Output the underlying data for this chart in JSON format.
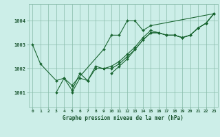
{
  "background_color": "#cceee8",
  "grid_color": "#88bbaa",
  "line_color": "#1a6632",
  "marker_color": "#1a6632",
  "xlabel": "Graphe pression niveau de la mer (hPa)",
  "xlabel_color": "#1a5530",
  "ylabel_ticks": [
    1001,
    1002,
    1003,
    1004
  ],
  "xlim": [
    -0.5,
    23.5
  ],
  "ylim": [
    1000.4,
    1004.7
  ],
  "xticks": [
    0,
    1,
    2,
    3,
    4,
    5,
    6,
    7,
    8,
    9,
    10,
    11,
    12,
    13,
    14,
    15,
    16,
    17,
    18,
    19,
    20,
    21,
    22,
    23
  ],
  "series1_x": [
    0,
    1,
    3,
    4,
    5,
    9,
    10,
    11,
    12,
    13,
    14,
    15,
    23
  ],
  "series1_y": [
    1003.0,
    1002.2,
    1001.5,
    1001.6,
    1001.3,
    1002.8,
    1003.4,
    1003.4,
    1004.0,
    1004.0,
    1003.6,
    1003.8,
    1004.3
  ],
  "series2_x": [
    3,
    4,
    5,
    6,
    7,
    8,
    9,
    10,
    11,
    12,
    13,
    14,
    15,
    16,
    17,
    18,
    19,
    20,
    21,
    22,
    23
  ],
  "series2_y": [
    1001.0,
    1001.6,
    1001.1,
    1001.8,
    1001.5,
    1002.1,
    1002.0,
    1002.0,
    1002.2,
    1002.5,
    1002.8,
    1003.2,
    1003.5,
    1003.5,
    1003.4,
    1003.4,
    1003.3,
    1003.4,
    1003.7,
    1003.9,
    1004.3
  ],
  "series3_x": [
    5,
    6,
    7,
    8,
    9,
    10,
    11,
    12,
    13,
    14,
    15,
    16,
    17,
    18,
    19,
    20,
    21,
    22,
    23
  ],
  "series3_y": [
    1001.0,
    1001.6,
    1001.5,
    1002.0,
    1002.0,
    1002.1,
    1002.3,
    1002.6,
    1002.9,
    1003.3,
    1003.6,
    1003.5,
    1003.4,
    1003.4,
    1003.3,
    1003.4,
    1003.7,
    1003.9,
    1004.3
  ],
  "series4_x": [
    10,
    11,
    12,
    13,
    14,
    15,
    16,
    17,
    18,
    19,
    20,
    21,
    22,
    23
  ],
  "series4_y": [
    1001.8,
    1002.1,
    1002.4,
    1002.8,
    1003.2,
    1003.5,
    1003.5,
    1003.4,
    1003.4,
    1003.3,
    1003.4,
    1003.7,
    1003.9,
    1004.3
  ],
  "figsize": [
    3.2,
    2.0
  ],
  "dpi": 100
}
